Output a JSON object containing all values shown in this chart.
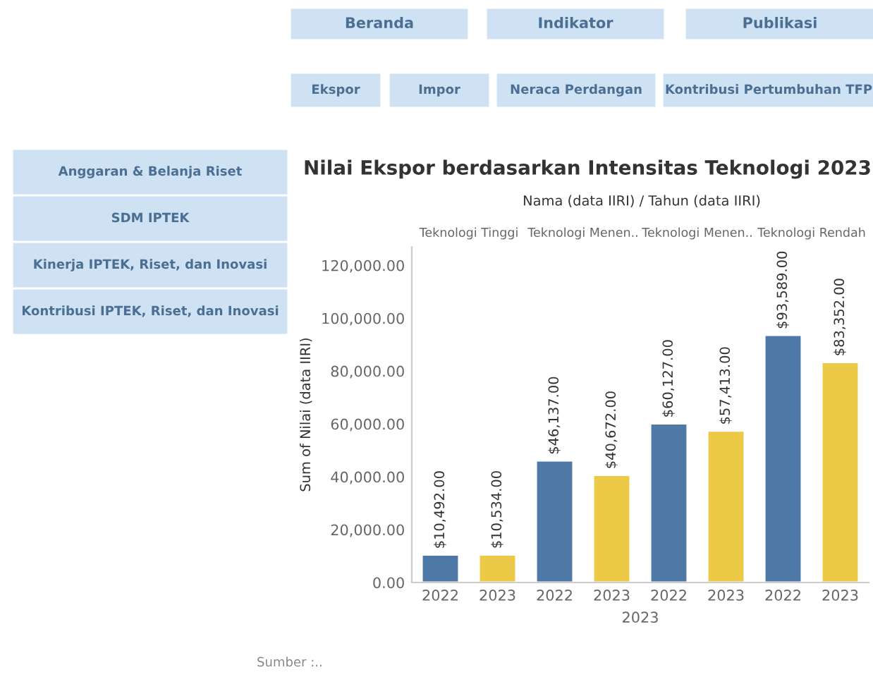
{
  "chart_data": [
    {
      "type": "bar",
      "title": "Nilai Ekspor berdasarkan Intensitas Teknologi 2023",
      "subtitle": "Nama (data IIRI) / Tahun (data IIRI)",
      "xlabel": "2023",
      "ylabel": "Sum of Nilai (data IIRI)",
      "categories": [
        "2022",
        "2023",
        "2022",
        "2023",
        "2022",
        "2023",
        "2022",
        "2023"
      ],
      "values": [
        10492,
        10534,
        46137,
        40672,
        60127,
        57413,
        93589,
        83352
      ],
      "colors": [
        "#4e79a7",
        "#edc948",
        "#4e79a7",
        "#edc948",
        "#4e79a7",
        "#edc948",
        "#4e79a7",
        "#edc948"
      ],
      "value_labels": [
        "$10,492.00",
        "$10,534.00",
        "$46,137.00",
        "$40,672.00",
        "$60,127.00",
        "$57,413.00",
        "$93,589.00",
        "$83,352.00"
      ],
      "ylim": [
        0,
        127000
      ],
      "yticks": [
        {
          "value": 0,
          "label": "0.00"
        },
        {
          "value": 20000,
          "label": "20,000.00"
        },
        {
          "value": 40000,
          "label": "40,000.00"
        },
        {
          "value": 60000,
          "label": "60,000.00"
        },
        {
          "value": 80000,
          "label": "80,000.00"
        },
        {
          "value": 100000,
          "label": "100,000.00"
        },
        {
          "value": 120000,
          "label": "120,000.00"
        }
      ],
      "annotations": [
        "Teknologi Tinggi",
        "Teknologi Menen..",
        "Teknologi Menen..",
        "Teknologi Rendah",
        "Sumber :.."
      ]
    },
    {
      "type": "other",
      "annotations": [
        "Beranda",
        "Indikator",
        "Publikasi",
        "Ekspor",
        "Impor",
        "Neraca Perdangan",
        "Kontribusi Pertumbuhan TFP",
        "Anggaran & Belanja Riset",
        "SDM IPTEK",
        "Kinerja IPTEK, Riset, dan Inovasi",
        "Kontribusi IPTEK, Riset, dan Inovasi"
      ]
    }
  ]
}
